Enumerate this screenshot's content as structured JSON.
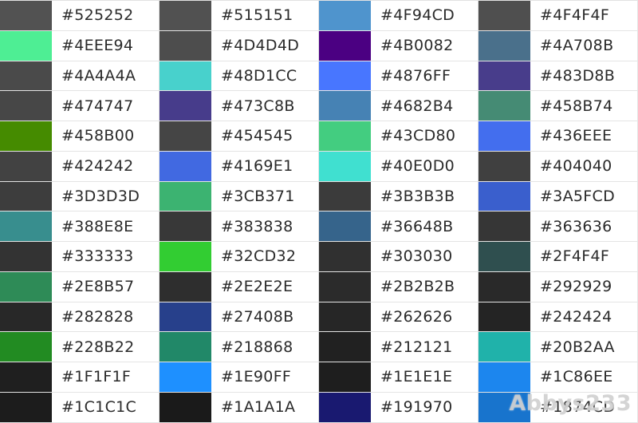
{
  "colors": [
    "#525252",
    "#515151",
    "#4F94CD",
    "#4F4F4F",
    "#4EEE94",
    "#4D4D4D",
    "#4B0082",
    "#4A708B",
    "#4A4A4A",
    "#48D1CC",
    "#4876FF",
    "#483D8B",
    "#474747",
    "#473C8B",
    "#4682B4",
    "#458B74",
    "#458B00",
    "#454545",
    "#43CD80",
    "#436EEE",
    "#424242",
    "#4169E1",
    "#40E0D0",
    "#404040",
    "#3D3D3D",
    "#3CB371",
    "#3B3B3B",
    "#3A5FCD",
    "#388E8E",
    "#383838",
    "#36648B",
    "#363636",
    "#333333",
    "#32CD32",
    "#303030",
    "#2F4F4F",
    "#2E8B57",
    "#2E2E2E",
    "#2B2B2B",
    "#292929",
    "#282828",
    "#27408B",
    "#262626",
    "#242424",
    "#228B22",
    "#218868",
    "#212121",
    "#20B2AA",
    "#1F1F1F",
    "#1E90FF",
    "#1E1E1E",
    "#1C86EE",
    "#1C1C1C",
    "#1A1A1A",
    "#191970",
    "#1874CD"
  ],
  "watermark": "Abbys233"
}
